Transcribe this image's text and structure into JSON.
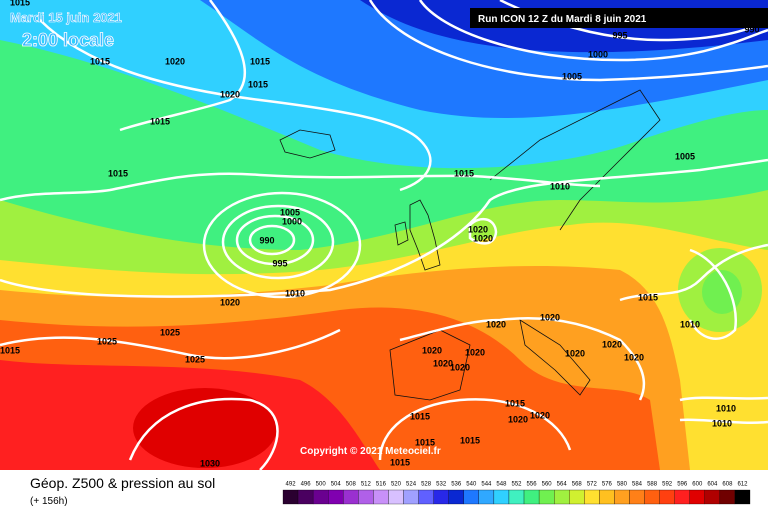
{
  "header": {
    "date": "Mardi 15 juin 2021",
    "time": "2:00 locale",
    "run": "Run ICON 12 Z du Mardi 8 juin 2021"
  },
  "isobar_labels": [
    1015,
    1015,
    1020,
    1015,
    1015,
    1020,
    1015,
    1015,
    1005,
    1000,
    990,
    995,
    1010,
    1020,
    1025,
    1025,
    1025,
    1015,
    1030,
    995,
    1000,
    1005,
    990,
    1005,
    1015,
    1010,
    1020,
    1020,
    1015,
    1010,
    1020,
    1020,
    1020,
    1020,
    1020,
    1020,
    1020,
    1020,
    1020,
    1015,
    1015,
    1020,
    1020,
    1015,
    1015,
    1015,
    1010,
    1010
  ],
  "copyright": "Copyright © 2021 Meteociel.fr",
  "footer": {
    "title": "Géop. Z500 & pression au sol",
    "lead": "(+ 156h)"
  },
  "legend": {
    "labels": [
      492,
      496,
      500,
      504,
      508,
      512,
      516,
      520,
      524,
      528,
      532,
      536,
      540,
      544,
      548,
      552,
      556,
      560,
      564,
      568,
      572,
      576,
      580,
      584,
      588,
      592,
      596,
      600,
      604,
      608,
      612
    ],
    "colors": [
      "#2a0030",
      "#4a0060",
      "#6a0090",
      "#8000b0",
      "#9a30d0",
      "#b060e8",
      "#c890f8",
      "#d8c0ff",
      "#a0a0ff",
      "#6060ff",
      "#2828e8",
      "#0a28d2",
      "#1e78ff",
      "#30a8ff",
      "#30d0ff",
      "#40f0c0",
      "#40f080",
      "#70f050",
      "#a0f040",
      "#d0f030",
      "#ffe030",
      "#ffc020",
      "#ffa020",
      "#ff8018",
      "#ff6010",
      "#ff4010",
      "#ff2020",
      "#e00000",
      "#b00000",
      "#700000",
      "#000000"
    ]
  }
}
